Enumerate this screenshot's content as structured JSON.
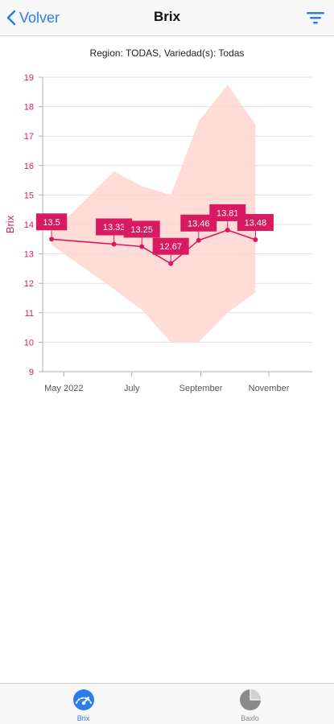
{
  "navbar": {
    "back_label": "Volver",
    "title": "Brix"
  },
  "subtitle": "Region: TODAS, Variedad(s): Todas",
  "colors": {
    "accent": "#d81b60",
    "band": "#ffd6d0",
    "ios_blue": "#2b7de9",
    "grid": "#e0e0e0"
  },
  "chart_data": {
    "type": "line",
    "ylabel": "Brix",
    "xlabel": "",
    "ylim": [
      9,
      19
    ],
    "y_ticks": [
      "9",
      "10",
      "11",
      "12",
      "13",
      "14",
      "15",
      "16",
      "17",
      "18",
      "19"
    ],
    "x_ticks": [
      "May 2022",
      "July",
      "September",
      "November"
    ],
    "x_tick_dates": [
      "2022-05-01",
      "2022-07-01",
      "2022-09-01",
      "2022-11-01"
    ],
    "xlim": [
      "2022-04-12",
      "2022-12-10"
    ],
    "grid": true,
    "series": [
      {
        "type": "line",
        "x": [
          "2022-04-20",
          "2022-06-15",
          "2022-07-10",
          "2022-08-05",
          "2022-08-30",
          "2022-09-25",
          "2022-10-20"
        ],
        "values": [
          13.5,
          13.33,
          13.25,
          12.67,
          13.46,
          13.81,
          13.48
        ],
        "labels": [
          "13.5",
          "13.33",
          "13.25",
          "12.67",
          "13.46",
          "13.81",
          "13.48"
        ]
      },
      {
        "type": "area-range",
        "x": [
          "2022-04-20",
          "2022-06-15",
          "2022-07-10",
          "2022-08-05",
          "2022-08-30",
          "2022-09-25",
          "2022-10-20"
        ],
        "high": [
          13.7,
          15.8,
          15.3,
          15.0,
          17.5,
          18.75,
          17.4
        ],
        "low": [
          13.3,
          11.8,
          11.1,
          10.0,
          10.0,
          11.0,
          11.7
        ]
      }
    ]
  },
  "tabbar": {
    "tabs": [
      {
        "label": "Brix"
      },
      {
        "label": "Baxlo"
      }
    ]
  }
}
